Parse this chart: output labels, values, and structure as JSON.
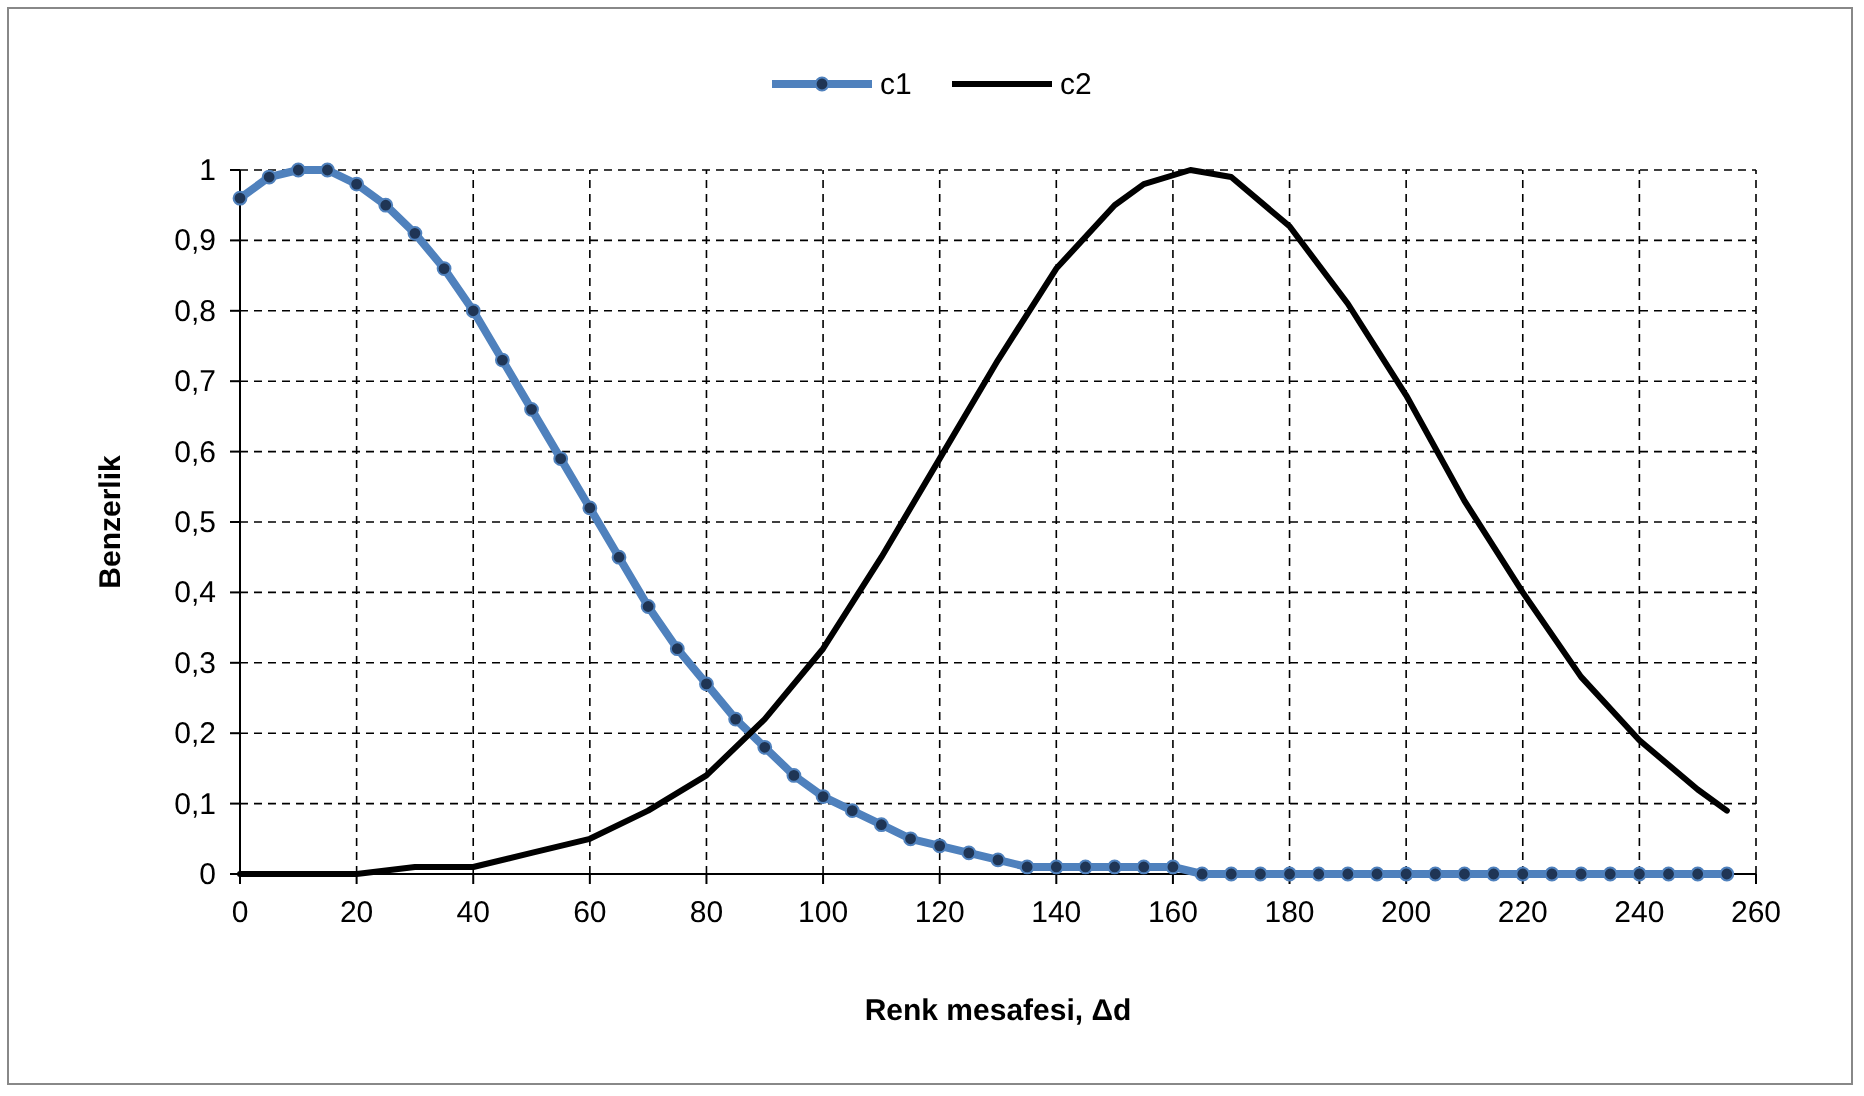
{
  "chart_data": {
    "type": "line",
    "xlabel": "Renk mesafesi, Δd",
    "ylabel": "Benzerlik",
    "xlim": [
      0,
      260
    ],
    "xticks": [
      0,
      20,
      40,
      60,
      80,
      100,
      120,
      140,
      160,
      180,
      200,
      220,
      240,
      260
    ],
    "ylim": [
      0,
      1
    ],
    "yticks": [
      0,
      {
        "value": 0.1,
        "label": "0,1"
      },
      {
        "value": 0.2,
        "label": "0,2"
      },
      {
        "value": 0.3,
        "label": "0,3"
      },
      {
        "value": 0.4,
        "label": "0,4"
      },
      {
        "value": 0.5,
        "label": "0,5"
      },
      {
        "value": 0.6,
        "label": "0,6"
      },
      {
        "value": 0.7,
        "label": "0,7"
      },
      {
        "value": 0.8,
        "label": "0,8"
      },
      {
        "value": 0.9,
        "label": "0,9"
      },
      1
    ],
    "grid": true,
    "legend": "top",
    "series": [
      {
        "name": "c1",
        "color": "#4f81bd",
        "marker": "circle",
        "x": [
          0,
          5,
          10,
          15,
          20,
          25,
          30,
          35,
          40,
          45,
          50,
          55,
          60,
          65,
          70,
          75,
          80,
          85,
          90,
          95,
          100,
          105,
          110,
          115,
          120,
          125,
          130,
          135,
          140,
          145,
          150,
          155,
          160,
          165,
          170,
          175,
          180,
          185,
          190,
          195,
          200,
          205,
          210,
          215,
          220,
          225,
          230,
          235,
          240,
          245,
          250,
          255
        ],
        "values": [
          0.96,
          0.99,
          1,
          1,
          0.98,
          0.95,
          0.91,
          0.86,
          0.8,
          0.73,
          0.66,
          0.59,
          0.52,
          0.45,
          0.38,
          0.32,
          0.27,
          0.22,
          0.18,
          0.14,
          0.11,
          0.09,
          0.07,
          0.05,
          0.04,
          0.03,
          0.02,
          0.01,
          0.01,
          0.01,
          0.01,
          0.01,
          0.01,
          0,
          0,
          0,
          0,
          0,
          0,
          0,
          0,
          0,
          0,
          0,
          0,
          0,
          0,
          0,
          0,
          0,
          0,
          0
        ]
      },
      {
        "name": "c2",
        "color": "#000000",
        "marker": "none",
        "x": [
          0,
          10,
          20,
          30,
          40,
          50,
          60,
          70,
          80,
          90,
          100,
          110,
          120,
          130,
          140,
          150,
          155,
          163,
          170,
          180,
          190,
          200,
          210,
          220,
          230,
          240,
          250,
          255
        ],
        "values": [
          0,
          0,
          0,
          0.01,
          0.01,
          0.03,
          0.05,
          0.09,
          0.14,
          0.22,
          0.32,
          0.45,
          0.59,
          0.73,
          0.86,
          0.95,
          0.98,
          1,
          0.99,
          0.92,
          0.81,
          0.68,
          0.53,
          0.4,
          0.28,
          0.19,
          0.12,
          0.09
        ]
      }
    ]
  }
}
